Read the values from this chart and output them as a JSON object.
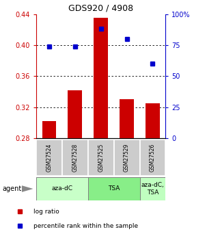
{
  "title": "GDS920 / 4908",
  "samples": [
    "GSM27524",
    "GSM27528",
    "GSM27525",
    "GSM27529",
    "GSM27526"
  ],
  "log_ratio": [
    0.302,
    0.342,
    0.435,
    0.33,
    0.325
  ],
  "percentile_rank": [
    74,
    74,
    88,
    80,
    60
  ],
  "bar_color": "#cc0000",
  "dot_color": "#0000cc",
  "ylim_left": [
    0.28,
    0.44
  ],
  "ylim_right": [
    0,
    100
  ],
  "yticks_left": [
    0.28,
    0.32,
    0.36,
    0.4,
    0.44
  ],
  "yticks_right": [
    0,
    25,
    50,
    75,
    100
  ],
  "ytick_labels_right": [
    "0",
    "25",
    "50",
    "75",
    "100%"
  ],
  "bar_bottom": 0.28,
  "gridlines": [
    0.32,
    0.36,
    0.4
  ],
  "agent_labels": [
    "aza-dC",
    "TSA",
    "aza-dC,\nTSA"
  ],
  "agent_groups": [
    [
      0,
      1
    ],
    [
      2,
      3
    ],
    [
      4
    ]
  ],
  "agent_colors_light": [
    "#ccffcc",
    "#aaffaa",
    "#bbffbb"
  ],
  "agent_colors_medium": [
    "#99ee99",
    "#77dd77",
    "#88ee88"
  ],
  "sample_bg_color": "#cccccc",
  "legend_log_ratio": "log ratio",
  "legend_percentile": "percentile rank within the sample",
  "bar_width": 0.55
}
